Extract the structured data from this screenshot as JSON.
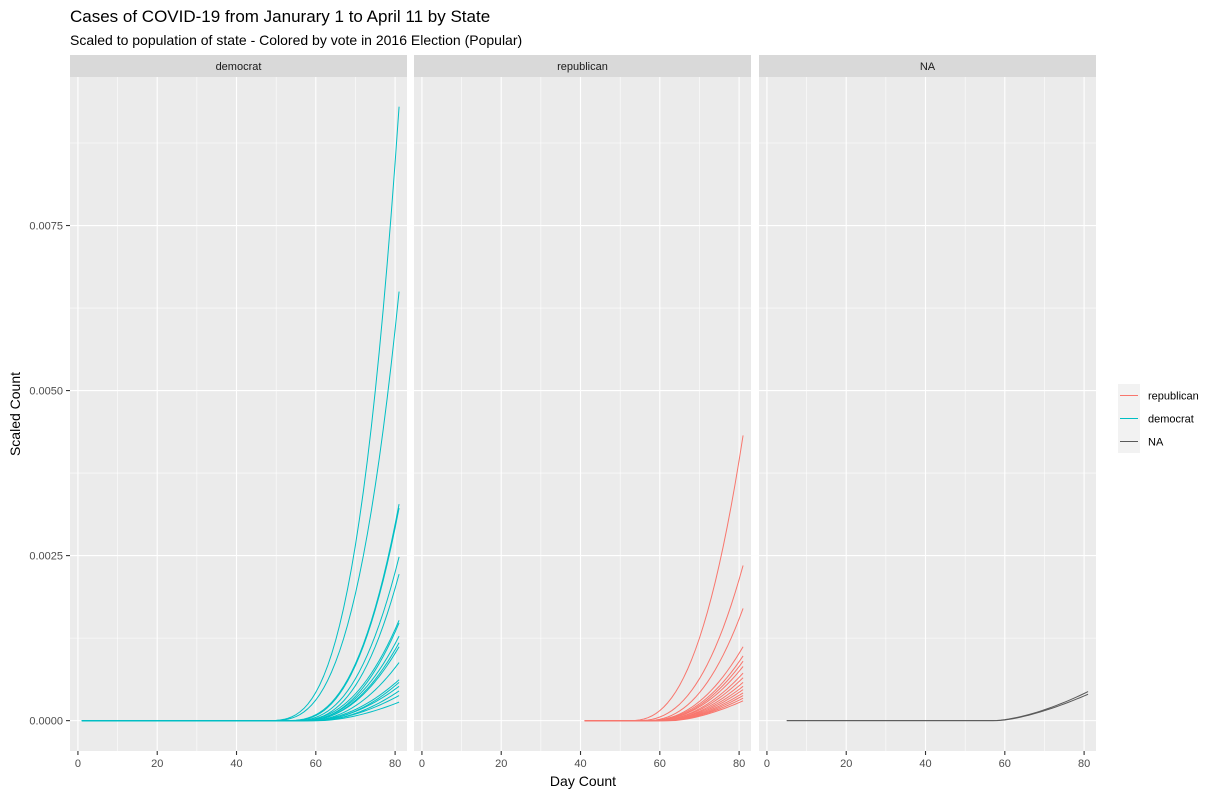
{
  "chart_data": {
    "type": "line",
    "title": "Cases of COVID-19 from Janurary 1 to April 11 by State",
    "subtitle": "Scaled to population of state - Colored by vote in 2016 Election (Popular)",
    "xlabel": "Day Count",
    "ylabel": "Scaled Count",
    "xlim": [
      -2,
      83
    ],
    "ylim": [
      -0.00046,
      0.00975
    ],
    "x_ticks": [
      0,
      20,
      40,
      60,
      80
    ],
    "x_tick_labels": [
      "0",
      "20",
      "40",
      "60",
      "80"
    ],
    "y_ticks": [
      0,
      0.0025,
      0.005,
      0.0075
    ],
    "y_tick_labels": [
      "0.0000",
      "0.0025",
      "0.0050",
      "0.0075"
    ],
    "grid": true,
    "legend_position": "right",
    "legend": [
      {
        "label": "republican",
        "color": "#F8766D"
      },
      {
        "label": "democrat",
        "color": "#00BFC4"
      },
      {
        "label": "NA",
        "color": "#595959"
      }
    ],
    "facets": [
      {
        "label": "democrat",
        "color": "#00BFC4",
        "x_start": 1,
        "x_end": 81,
        "series": [
          {
            "onset": 47,
            "final": 0.0093,
            "k": 3.2
          },
          {
            "onset": 48,
            "final": 0.0065,
            "k": 3.0
          },
          {
            "onset": 52,
            "final": 0.00328,
            "k": 2.8
          },
          {
            "onset": 53,
            "final": 0.00322,
            "k": 2.7
          },
          {
            "onset": 54,
            "final": 0.00248,
            "k": 2.6
          },
          {
            "onset": 55,
            "final": 0.00222,
            "k": 2.6
          },
          {
            "onset": 55,
            "final": 0.00152,
            "k": 2.4
          },
          {
            "onset": 56,
            "final": 0.00148,
            "k": 2.4
          },
          {
            "onset": 56,
            "final": 0.00128,
            "k": 2.3
          },
          {
            "onset": 57,
            "final": 0.00118,
            "k": 2.2
          },
          {
            "onset": 57,
            "final": 0.00112,
            "k": 2.2
          },
          {
            "onset": 58,
            "final": 0.00088,
            "k": 2.1
          },
          {
            "onset": 58,
            "final": 0.00062,
            "k": 2.0
          },
          {
            "onset": 59,
            "final": 0.00058,
            "k": 2.0
          },
          {
            "onset": 59,
            "final": 0.00052,
            "k": 1.9
          },
          {
            "onset": 60,
            "final": 0.00045,
            "k": 1.9
          },
          {
            "onset": 60,
            "final": 0.00038,
            "k": 1.8
          },
          {
            "onset": 61,
            "final": 0.00028,
            "k": 1.7
          }
        ]
      },
      {
        "label": "republican",
        "color": "#F8766D",
        "x_start": 41,
        "x_end": 81,
        "series": [
          {
            "onset": 52,
            "final": 0.00432,
            "k": 2.6
          },
          {
            "onset": 54,
            "final": 0.00235,
            "k": 2.5
          },
          {
            "onset": 56,
            "final": 0.0017,
            "k": 2.4
          },
          {
            "onset": 57,
            "final": 0.00112,
            "k": 2.2
          },
          {
            "onset": 57,
            "final": 0.00098,
            "k": 2.2
          },
          {
            "onset": 58,
            "final": 0.0009,
            "k": 2.1
          },
          {
            "onset": 58,
            "final": 0.00082,
            "k": 2.1
          },
          {
            "onset": 59,
            "final": 0.00072,
            "k": 2.0
          },
          {
            "onset": 59,
            "final": 0.00065,
            "k": 2.0
          },
          {
            "onset": 60,
            "final": 0.00058,
            "k": 1.9
          },
          {
            "onset": 60,
            "final": 0.00052,
            "k": 1.9
          },
          {
            "onset": 61,
            "final": 0.00047,
            "k": 1.8
          },
          {
            "onset": 61,
            "final": 0.00042,
            "k": 1.8
          },
          {
            "onset": 62,
            "final": 0.00038,
            "k": 1.7
          },
          {
            "onset": 62,
            "final": 0.00034,
            "k": 1.7
          },
          {
            "onset": 63,
            "final": 0.0003,
            "k": 1.6
          }
        ]
      },
      {
        "label": "NA",
        "color": "#595959",
        "x_start": 5,
        "x_end": 81,
        "series": [
          {
            "onset": 57,
            "final": 0.00044,
            "k": 1.6
          },
          {
            "onset": 58,
            "final": 0.0004,
            "k": 1.5
          }
        ]
      }
    ]
  }
}
